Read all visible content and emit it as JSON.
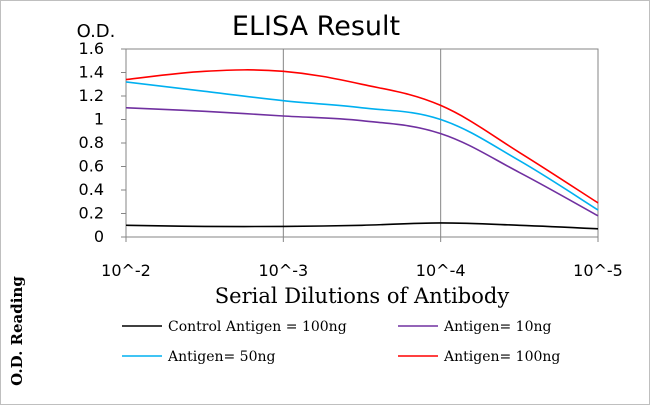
{
  "chart_data": {
    "type": "line",
    "title": "ELISA Result",
    "ylabel": "O.D.",
    "ylabel_side": "O.D. Reading",
    "xlabel": "Serial Dilutions of Antibody",
    "x": [
      0,
      0.5,
      1,
      1.5,
      2,
      2.5,
      3
    ],
    "categories": [
      "10^-2",
      "10^-3",
      "10^-4",
      "10^-5"
    ],
    "yticks": [
      "0",
      "0.2",
      "0.4",
      "0.6",
      "0.8",
      "1",
      "1.2",
      "1.4",
      "1.6"
    ],
    "ylim": [
      0,
      1.6
    ],
    "grid": true,
    "legend_position": "bottom",
    "series": [
      {
        "name": "Control Antigen = 100ng",
        "color": "#000000",
        "values": [
          0.1,
          0.09,
          0.09,
          0.1,
          0.12,
          0.1,
          0.07
        ]
      },
      {
        "name": "Antigen= 10ng",
        "color": "#7030a0",
        "values": [
          1.1,
          1.07,
          1.03,
          0.99,
          0.88,
          0.55,
          0.18
        ]
      },
      {
        "name": "Antigen= 50ng",
        "color": "#00b0f0",
        "values": [
          1.32,
          1.24,
          1.16,
          1.1,
          1.0,
          0.65,
          0.23
        ]
      },
      {
        "name": "Antigen= 100ng",
        "color": "#ff0000",
        "values": [
          1.34,
          1.41,
          1.41,
          1.3,
          1.12,
          0.72,
          0.29
        ]
      }
    ]
  }
}
